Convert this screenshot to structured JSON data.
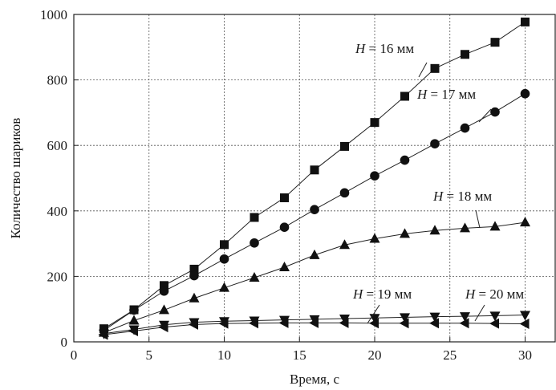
{
  "chart_data": {
    "type": "line",
    "title": "",
    "xlabel": "Время, с",
    "ylabel": "Количество шариков",
    "xlim": [
      0,
      32
    ],
    "ylim": [
      0,
      1000
    ],
    "xticks": [
      0,
      5,
      10,
      15,
      20,
      25,
      30
    ],
    "yticks": [
      0,
      200,
      400,
      600,
      800,
      1000
    ],
    "grid": true,
    "legend": "annotations on the lines",
    "series": [
      {
        "name": "H = 16 мм",
        "marker": "square",
        "x": [
          2,
          4,
          6,
          8,
          10,
          12,
          14,
          16,
          18,
          20,
          22,
          24,
          26,
          28,
          30
        ],
        "values": [
          40,
          98,
          172,
          222,
          297,
          380,
          440,
          525,
          597,
          670,
          750,
          835,
          878,
          915,
          977
        ]
      },
      {
        "name": "H = 17 мм",
        "marker": "circle",
        "x": [
          2,
          4,
          6,
          8,
          10,
          12,
          14,
          16,
          18,
          20,
          22,
          24,
          26,
          28,
          30
        ],
        "values": [
          35,
          97,
          155,
          202,
          253,
          302,
          350,
          404,
          455,
          507,
          555,
          605,
          653,
          702,
          758
        ]
      },
      {
        "name": "H = 18 мм",
        "marker": "triangle-up",
        "x": [
          2,
          4,
          6,
          8,
          10,
          12,
          14,
          16,
          18,
          20,
          22,
          24,
          26,
          28,
          30
        ],
        "values": [
          28,
          65,
          97,
          133,
          165,
          196,
          228,
          265,
          296,
          315,
          330,
          340,
          347,
          352,
          365
        ]
      },
      {
        "name": "H = 19 мм",
        "marker": "triangle-down",
        "x": [
          2,
          4,
          6,
          8,
          10,
          12,
          14,
          16,
          18,
          20,
          22,
          24,
          26,
          28,
          30
        ],
        "values": [
          25,
          38,
          52,
          60,
          63,
          65,
          67,
          69,
          71,
          73,
          75,
          77,
          78,
          80,
          82
        ]
      },
      {
        "name": "H = 20 мм",
        "marker": "triangle-left",
        "x": [
          2,
          4,
          6,
          8,
          10,
          12,
          14,
          16,
          18,
          20,
          22,
          24,
          26,
          28,
          30
        ],
        "values": [
          22,
          33,
          45,
          53,
          56,
          57,
          58,
          58,
          58,
          57,
          57,
          57,
          57,
          56,
          55
        ]
      }
    ],
    "annotations": [
      {
        "prefix": "H",
        "suffix": " = 16 мм"
      },
      {
        "prefix": "H",
        "suffix": " = 17 мм"
      },
      {
        "prefix": "H",
        "suffix": " = 18 мм"
      },
      {
        "prefix": "H",
        "suffix": " = 19 мм"
      },
      {
        "prefix": "H",
        "suffix": " = 20 мм"
      }
    ]
  }
}
